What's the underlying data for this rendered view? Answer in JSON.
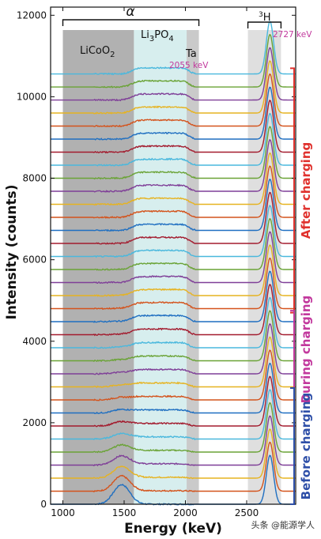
{
  "chart_data": {
    "type": "line",
    "title": "",
    "xlabel": "Energy (keV)",
    "ylabel": "Intensity (counts)",
    "xlim": [
      900,
      2900
    ],
    "ylim": [
      0,
      12200
    ],
    "x_ticks": [
      1000,
      1500,
      2000,
      2500
    ],
    "x_tick_labels": [
      "1000",
      "1500",
      "2000",
      "2500"
    ],
    "y_ticks": [
      0,
      2000,
      4000,
      6000,
      8000,
      10000,
      12000
    ],
    "y_tick_labels": [
      "0",
      "2000",
      "4000",
      "6000",
      "8000",
      "10000",
      "12000"
    ],
    "grid": false,
    "legend": "none",
    "series_count": 34,
    "series_offset_counts": 320,
    "series_colors": [
      "#1f6fc1",
      "#d4531c",
      "#e6b321",
      "#7f3f98",
      "#6aa336",
      "#4ab8dd",
      "#a31b2e"
    ],
    "shaded_regions": [
      {
        "label": "LiCoO2",
        "x_range": [
          1000,
          1580
        ],
        "color": "#a9a9a9"
      },
      {
        "label": "Li3PO4",
        "x_range": [
          1580,
          2010
        ],
        "color": "#d3ecec"
      },
      {
        "label": "Ta",
        "x_range": [
          2010,
          2110
        ],
        "color": "#c4c4c4"
      },
      {
        "label": "3H",
        "x_range": [
          2510,
          2780
        ],
        "color": "#dcdcdc"
      }
    ],
    "labels": {
      "alpha": "α",
      "licoo2": "LiCoO",
      "licoo2_sub": "2",
      "li3po4_a": "Li",
      "li3po4_a_sub": "3",
      "li3po4_b": "PO",
      "li3po4_b_sub": "4",
      "ta": "Ta",
      "tritium_sup": "3",
      "tritium": "H",
      "edge_2055": "2055 keV",
      "edge_2727": "2727 keV"
    },
    "groups": [
      {
        "label": "After charging",
        "color": "#e0312d",
        "y_range": [
          4700,
          10700
        ]
      },
      {
        "label": "During charging",
        "color": "#c2389d",
        "y_range": [
          2850,
          4750
        ]
      },
      {
        "label": "Before charging",
        "color": "#2e4fa8",
        "y_range": [
          0,
          2850
        ]
      }
    ],
    "alpha_peak": {
      "center_keV": 1480,
      "first_trace_height": 480,
      "decay_per_trace": 0.78
    },
    "plateau": {
      "x_range": [
        1600,
        2040
      ],
      "level_counts": 150
    },
    "tritium_peak": {
      "center_keV": 2690,
      "first_trace_height": 1200,
      "last_trace_height": 1290
    }
  },
  "watermark": "头条 @能源学人"
}
